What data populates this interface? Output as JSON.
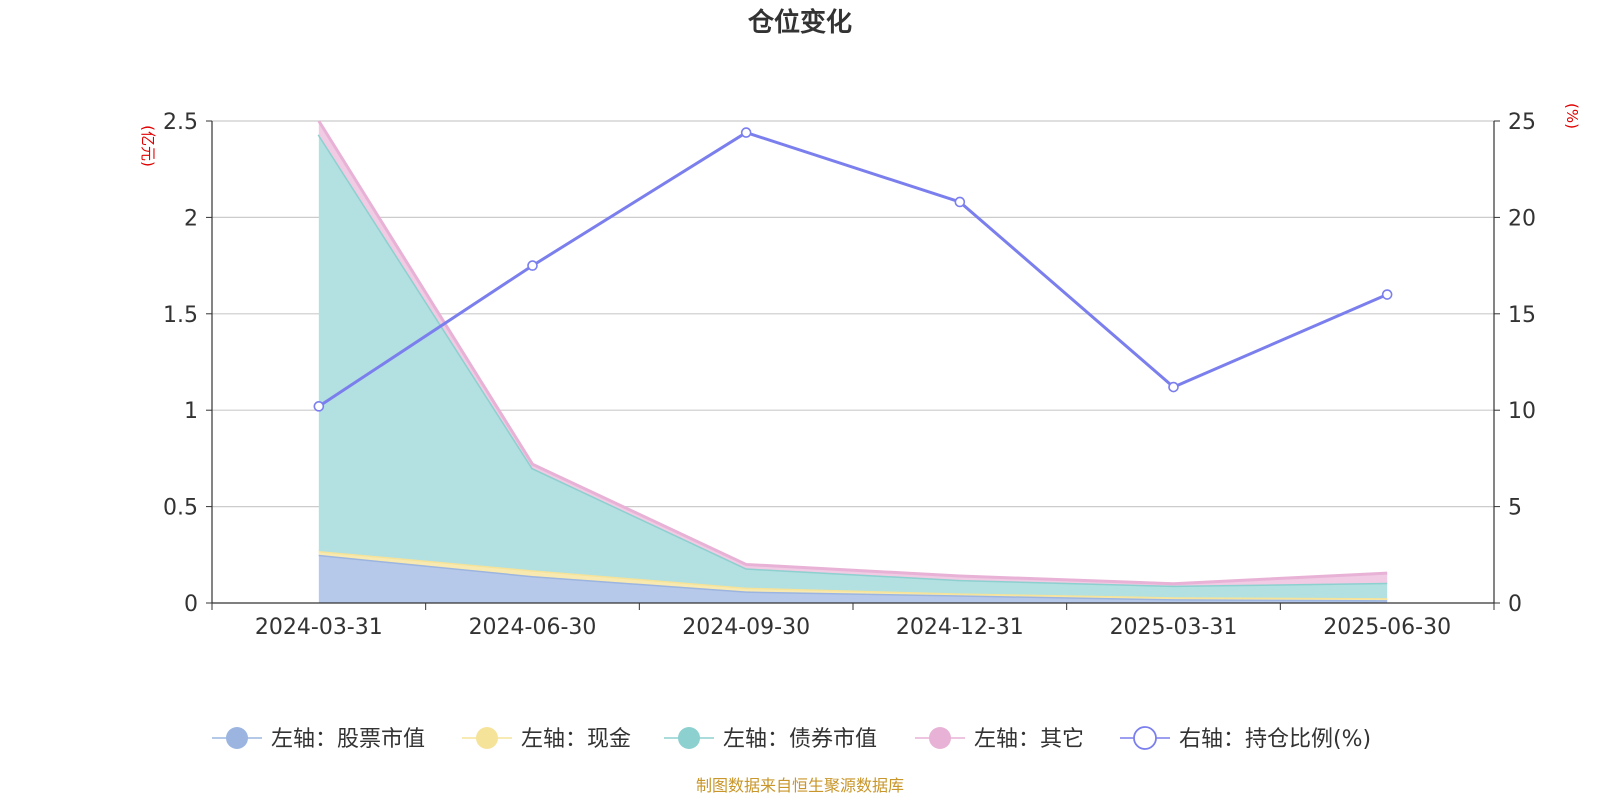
{
  "chart_data": {
    "type": "area",
    "title": "仓位变化",
    "categories": [
      "2024-03-31",
      "2024-06-30",
      "2024-09-30",
      "2024-12-31",
      "2025-03-31",
      "2025-06-30"
    ],
    "left_axis": {
      "label": "(亿元)",
      "min": 0,
      "max": 2.5,
      "ticks": [
        "0",
        "0.5",
        "1",
        "1.5",
        "2",
        "2.5"
      ]
    },
    "right_axis": {
      "label": "(%)",
      "min": 0,
      "max": 25,
      "ticks": [
        "0",
        "5",
        "10",
        "15",
        "20",
        "25"
      ]
    },
    "stacked": true,
    "grid": true,
    "legend_position": "bottom",
    "series": [
      {
        "name": "左轴：股票市值",
        "axis": "left",
        "kind": "area",
        "color": "#9bb5e0",
        "fill": "#b7c9ea",
        "values": [
          0.25,
          0.14,
          0.06,
          0.04,
          0.02,
          0.015
        ]
      },
      {
        "name": "左轴：现金",
        "axis": "left",
        "kind": "area",
        "color": "#f6e39a",
        "fill": "#f8e9b0",
        "values": [
          0.02,
          0.03,
          0.02,
          0.01,
          0.01,
          0.01
        ]
      },
      {
        "name": "左轴：债券市值",
        "axis": "left",
        "kind": "area",
        "color": "#8dd0d0",
        "fill": "#b3e0e0",
        "values": [
          2.16,
          0.53,
          0.1,
          0.07,
          0.06,
          0.08
        ]
      },
      {
        "name": "左轴：其它",
        "axis": "left",
        "kind": "area",
        "color": "#e8b2d6",
        "fill": "#f0cbe3",
        "values": [
          0.07,
          0.02,
          0.02,
          0.02,
          0.01,
          0.05
        ]
      },
      {
        "name": "右轴：持仓比例(%)",
        "axis": "right",
        "kind": "line",
        "color": "#7b7fee",
        "values": [
          10.2,
          17.5,
          24.4,
          20.8,
          11.2,
          16.0
        ]
      }
    ],
    "source_note": "制图数据来自恒生聚源数据库"
  }
}
